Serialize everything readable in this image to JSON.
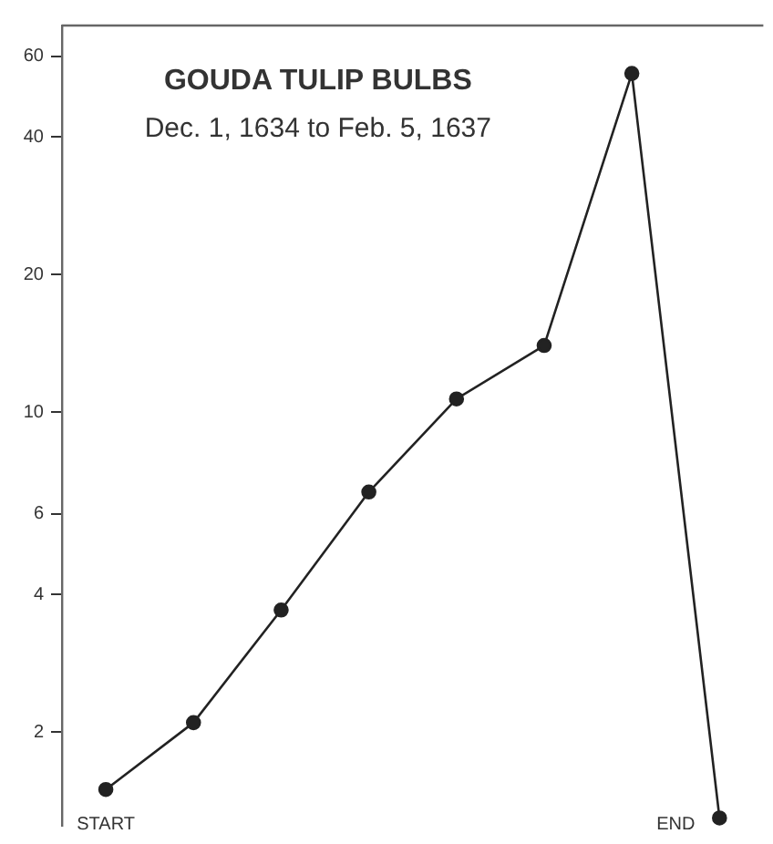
{
  "chart_data": {
    "type": "line",
    "title": "GOUDA TULIP BULBS",
    "subtitle": "Dec. 1, 1634 to Feb. 5, 1637",
    "categories": [
      null,
      null,
      null,
      null,
      null,
      null,
      null,
      null
    ],
    "series": [
      {
        "color": "#222222",
        "values": [
          1.5,
          2.1,
          3.7,
          6.7,
          10.7,
          14,
          55,
          1.3
        ]
      }
    ],
    "ylim": [
      1.25,
      70
    ],
    "yticks": [
      2,
      4,
      6,
      10,
      20,
      40,
      60
    ],
    "log": "y",
    "grid": false,
    "tick_labels": "y",
    "marker": "circle",
    "line_style": "solid",
    "legend": false,
    "annotations": [
      "START",
      "END"
    ]
  }
}
